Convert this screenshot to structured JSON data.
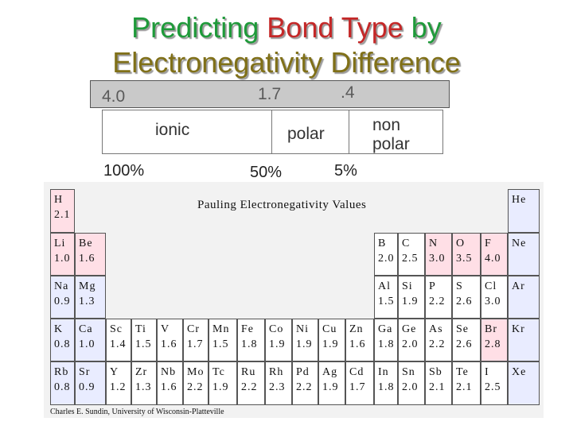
{
  "title": {
    "line1_part1": "Predicting",
    "line1_part2": "Bond Type",
    "line1_part3": "by",
    "line2": "Electronegativity Difference"
  },
  "scale": {
    "left": "4.0",
    "middle": "1.7",
    "right": ".4"
  },
  "bond_types": {
    "ionic": "ionic",
    "polar": "polar",
    "nonpolar_line1": "non",
    "nonpolar_line2": "polar"
  },
  "percentages": {
    "ionic": "100%",
    "polar": "50%",
    "nonpolar": "5%"
  },
  "periodic_table": {
    "title": "Pauling Electronegativity Values",
    "credit": "Charles E. Sundin, University of Wisconsin-Platteville",
    "colors": {
      "pink": "#ffdfe6",
      "lavender": "#e9ecff",
      "white": "#ffffff"
    },
    "rows": [
      [
        {
          "sym": "H",
          "val": "2.1",
          "c": "pink"
        }
      ],
      [
        {
          "sym": "He",
          "val": "",
          "c": "lav"
        }
      ],
      [
        {
          "sym": "Li",
          "val": "1.0",
          "c": "pink"
        },
        {
          "sym": "Be",
          "val": "1.6",
          "c": "pink"
        }
      ],
      [
        {
          "sym": "B",
          "val": "2.0",
          "c": "plain"
        },
        {
          "sym": "C",
          "val": "2.5",
          "c": "plain"
        },
        {
          "sym": "N",
          "val": "3.0",
          "c": "pink"
        },
        {
          "sym": "O",
          "val": "3.5",
          "c": "pink"
        },
        {
          "sym": "F",
          "val": "4.0",
          "c": "pink"
        },
        {
          "sym": "Ne",
          "val": "",
          "c": "lav"
        }
      ],
      [
        {
          "sym": "Na",
          "val": "0.9",
          "c": "lav"
        },
        {
          "sym": "Mg",
          "val": "1.3",
          "c": "lav"
        }
      ],
      [
        {
          "sym": "Al",
          "val": "1.5",
          "c": "plain"
        },
        {
          "sym": "Si",
          "val": "1.9",
          "c": "plain"
        },
        {
          "sym": "P",
          "val": "2.2",
          "c": "plain"
        },
        {
          "sym": "S",
          "val": "2.6",
          "c": "plain"
        },
        {
          "sym": "Cl",
          "val": "3.0",
          "c": "plain"
        },
        {
          "sym": "Ar",
          "val": "",
          "c": "lav"
        }
      ],
      [
        {
          "sym": "K",
          "val": "0.8",
          "c": "lav"
        },
        {
          "sym": "Ca",
          "val": "1.0",
          "c": "lav"
        },
        {
          "sym": "Sc",
          "val": "1.4",
          "c": "plain"
        },
        {
          "sym": "Ti",
          "val": "1.5",
          "c": "plain"
        },
        {
          "sym": "V",
          "val": "1.6",
          "c": "plain"
        },
        {
          "sym": "Cr",
          "val": "1.7",
          "c": "plain"
        },
        {
          "sym": "Mn",
          "val": "1.5",
          "c": "plain"
        },
        {
          "sym": "Fe",
          "val": "1.8",
          "c": "plain"
        },
        {
          "sym": "Co",
          "val": "1.9",
          "c": "plain"
        },
        {
          "sym": "Ni",
          "val": "1.9",
          "c": "plain"
        },
        {
          "sym": "Cu",
          "val": "1.9",
          "c": "plain"
        },
        {
          "sym": "Zn",
          "val": "1.6",
          "c": "plain"
        },
        {
          "sym": "Ga",
          "val": "1.8",
          "c": "plain"
        },
        {
          "sym": "Ge",
          "val": "2.0",
          "c": "plain"
        },
        {
          "sym": "As",
          "val": "2.2",
          "c": "plain"
        },
        {
          "sym": "Se",
          "val": "2.6",
          "c": "plain"
        },
        {
          "sym": "Br",
          "val": "2.8",
          "c": "pink"
        },
        {
          "sym": "Kr",
          "val": "",
          "c": "lav"
        }
      ],
      [
        {
          "sym": "Rb",
          "val": "0.8",
          "c": "lav"
        },
        {
          "sym": "Sr",
          "val": "0.9",
          "c": "lav"
        },
        {
          "sym": "Y",
          "val": "1.2",
          "c": "plain"
        },
        {
          "sym": "Zr",
          "val": "1.3",
          "c": "plain"
        },
        {
          "sym": "Nb",
          "val": "1.6",
          "c": "plain"
        },
        {
          "sym": "Mo",
          "val": "2.2",
          "c": "plain"
        },
        {
          "sym": "Tc",
          "val": "1.9",
          "c": "plain"
        },
        {
          "sym": "Ru",
          "val": "2.2",
          "c": "plain"
        },
        {
          "sym": "Rh",
          "val": "2.3",
          "c": "plain"
        },
        {
          "sym": "Pd",
          "val": "2.2",
          "c": "plain"
        },
        {
          "sym": "Ag",
          "val": "1.9",
          "c": "plain"
        },
        {
          "sym": "Cd",
          "val": "1.7",
          "c": "plain"
        },
        {
          "sym": "In",
          "val": "1.8",
          "c": "plain"
        },
        {
          "sym": "Sn",
          "val": "2.0",
          "c": "plain"
        },
        {
          "sym": "Sb",
          "val": "2.1",
          "c": "plain"
        },
        {
          "sym": "Te",
          "val": "2.1",
          "c": "plain"
        },
        {
          "sym": "I",
          "val": "2.5",
          "c": "plain"
        },
        {
          "sym": "Xe",
          "val": "",
          "c": "lav"
        }
      ]
    ]
  }
}
